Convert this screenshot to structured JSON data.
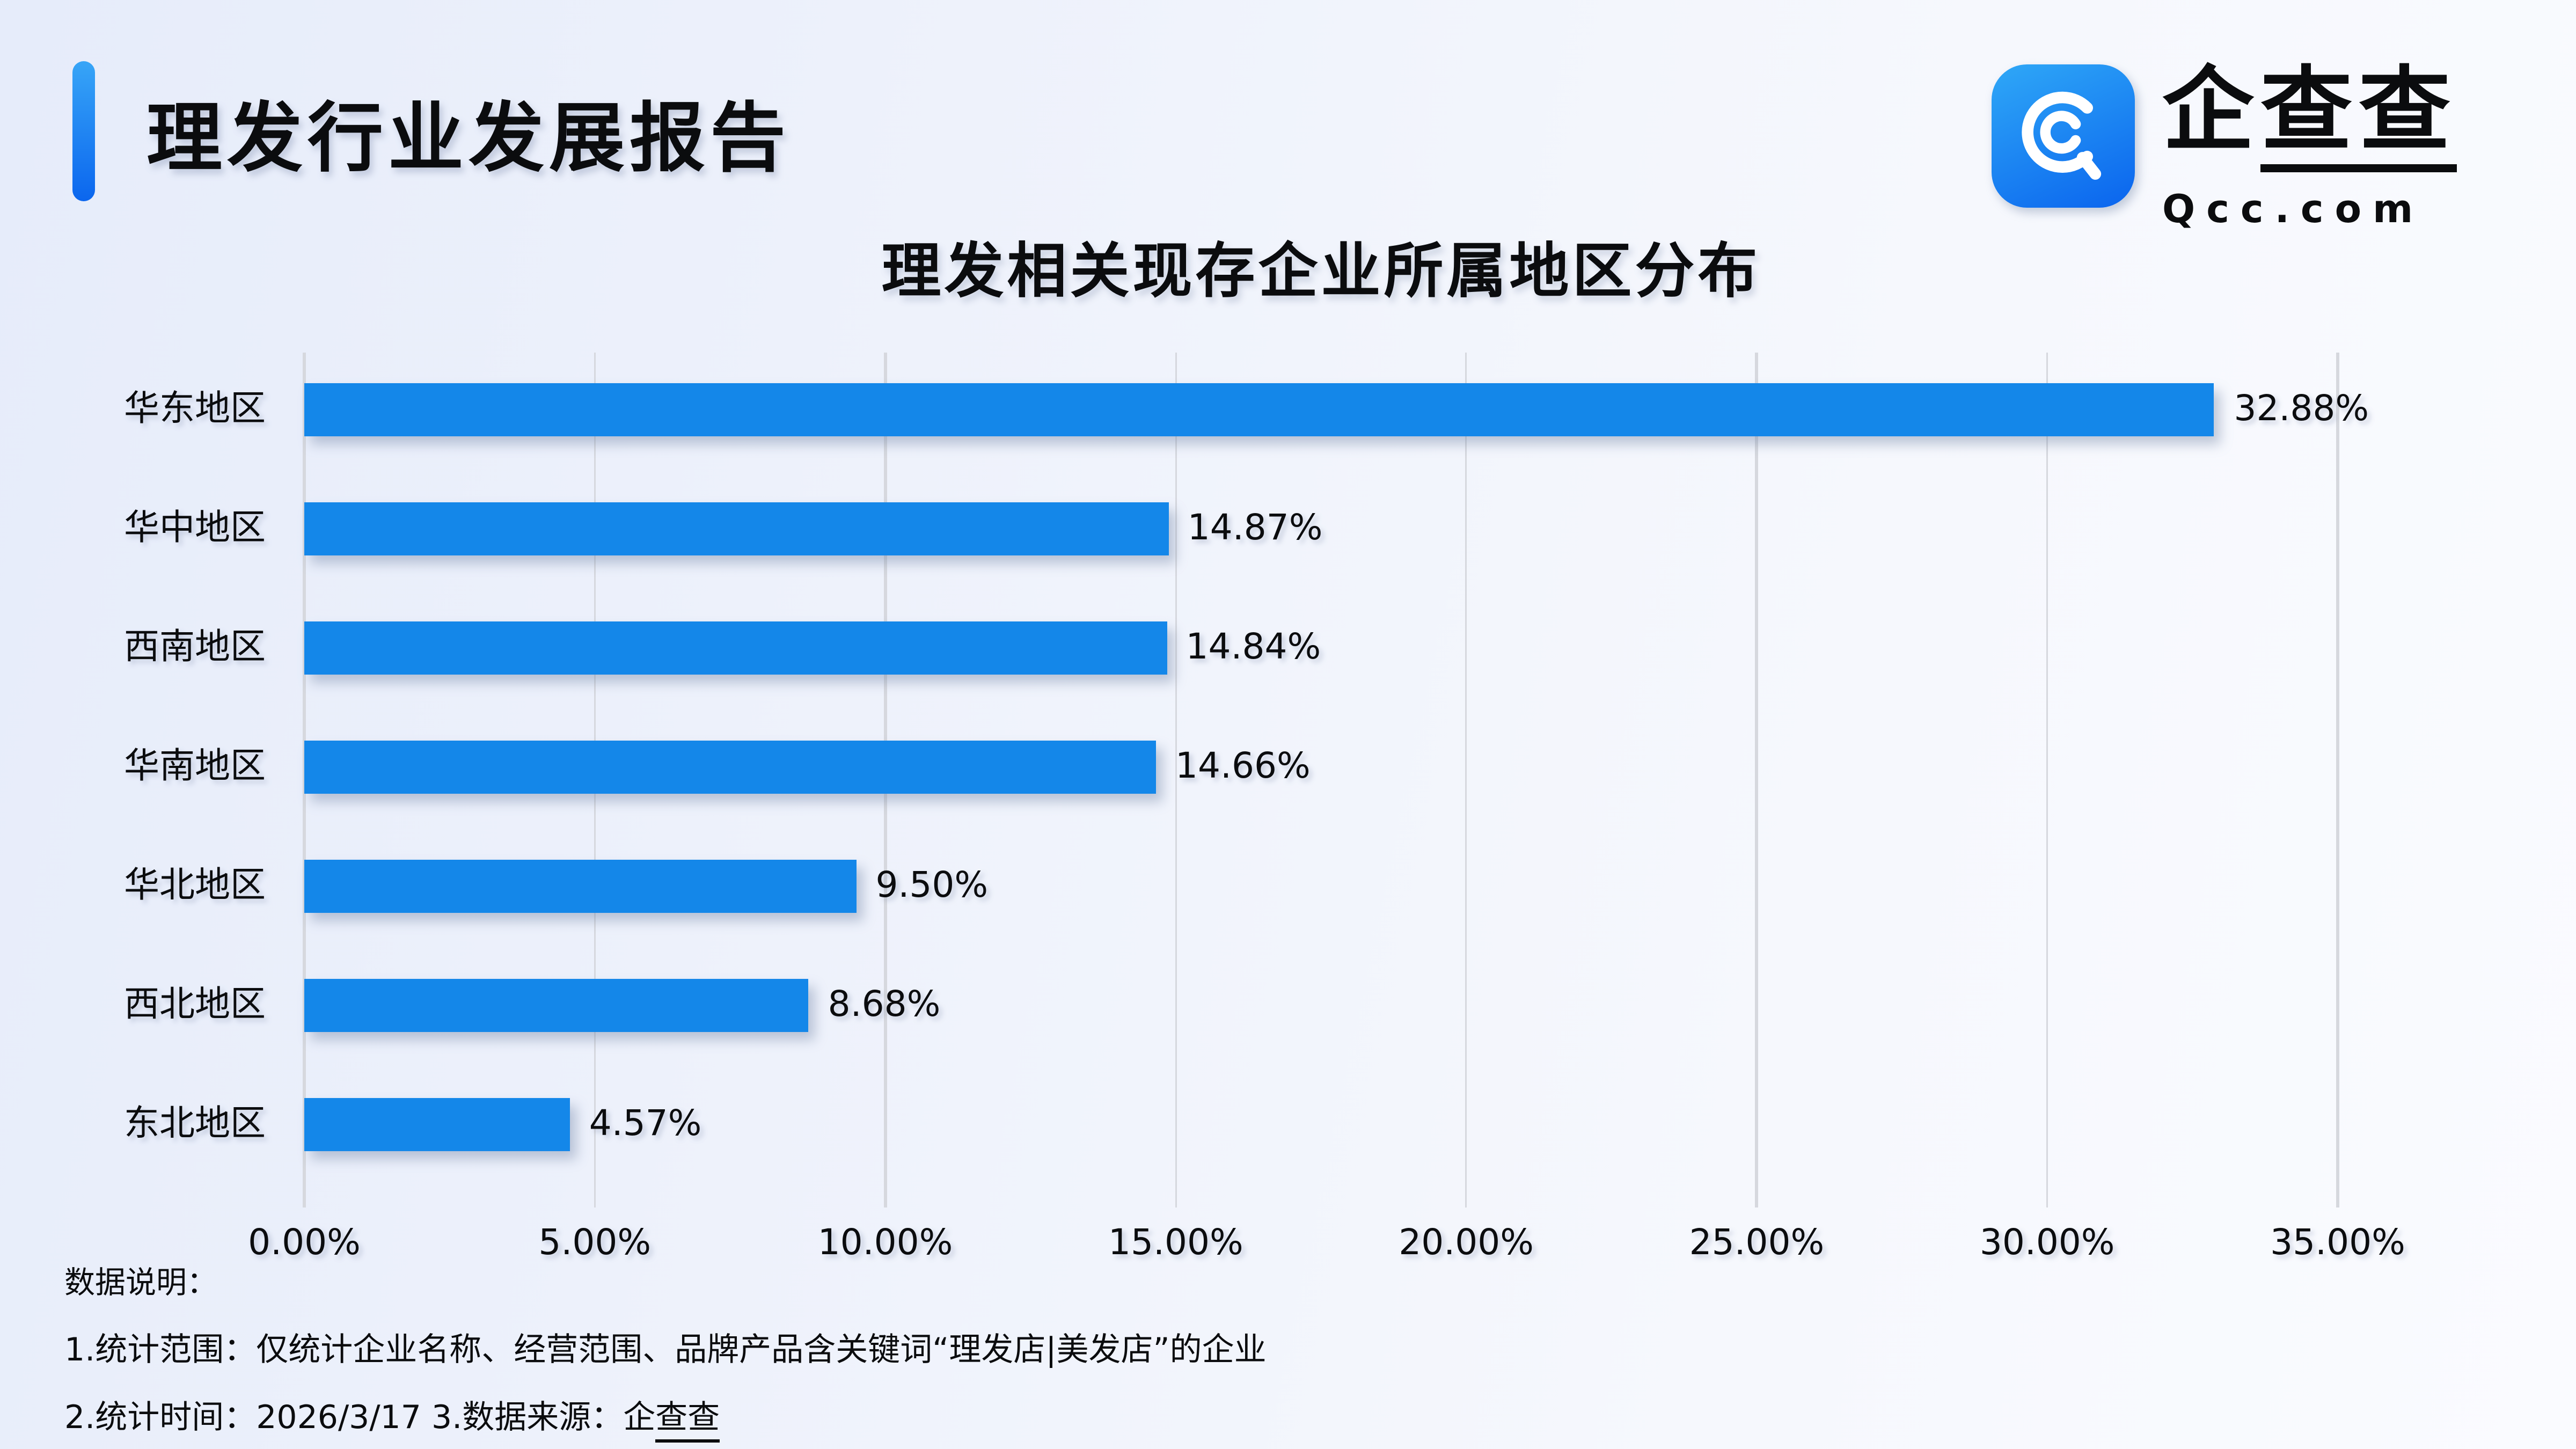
{
  "header": {
    "title": "理发行业发展报告"
  },
  "logo": {
    "icon": "qcc-magnifier-icon",
    "cn_plain": "企",
    "cn_underlined": "查查",
    "domain": "Qcc.com"
  },
  "chart_data": {
    "type": "bar",
    "orientation": "horizontal",
    "title": "理发相关现存企业所属地区分布",
    "categories": [
      "华东地区",
      "华中地区",
      "西南地区",
      "华南地区",
      "华北地区",
      "西北地区",
      "东北地区"
    ],
    "values": [
      32.88,
      14.87,
      14.84,
      14.66,
      9.5,
      8.68,
      4.57
    ],
    "labels": [
      "32.88%",
      "14.87%",
      "14.84%",
      "14.66%",
      "9.50%",
      "8.68%",
      "4.57%"
    ],
    "x_ticks": [
      "0.00%",
      "5.00%",
      "10.00%",
      "15.00%",
      "20.00%",
      "25.00%",
      "30.00%",
      "35.00%"
    ],
    "xlim": [
      0,
      35
    ],
    "grid": true,
    "legend": "none",
    "bar_color": "#1487e9"
  },
  "colors": {
    "bar": "#1487e9",
    "accent_top": "#37a5f7",
    "accent_bottom": "#0b66ee",
    "logo_gradient_top": "#2fa8f7",
    "logo_gradient_bottom": "#0a64ee",
    "gridline": "#d6d8de",
    "text": "#0b0c0e",
    "background_left": "#e6ecfa",
    "background_right": "#fafbff"
  },
  "notes": {
    "heading": "数据说明：",
    "line1": "1.统计范围：仅统计企业名称、经营范围、品牌产品含关键词“理发店|美发店”的企业",
    "line2_prefix": "2.统计时间：2026/3/17  3.数据来源：",
    "source_plain": "企",
    "source_underlined": "查查"
  }
}
